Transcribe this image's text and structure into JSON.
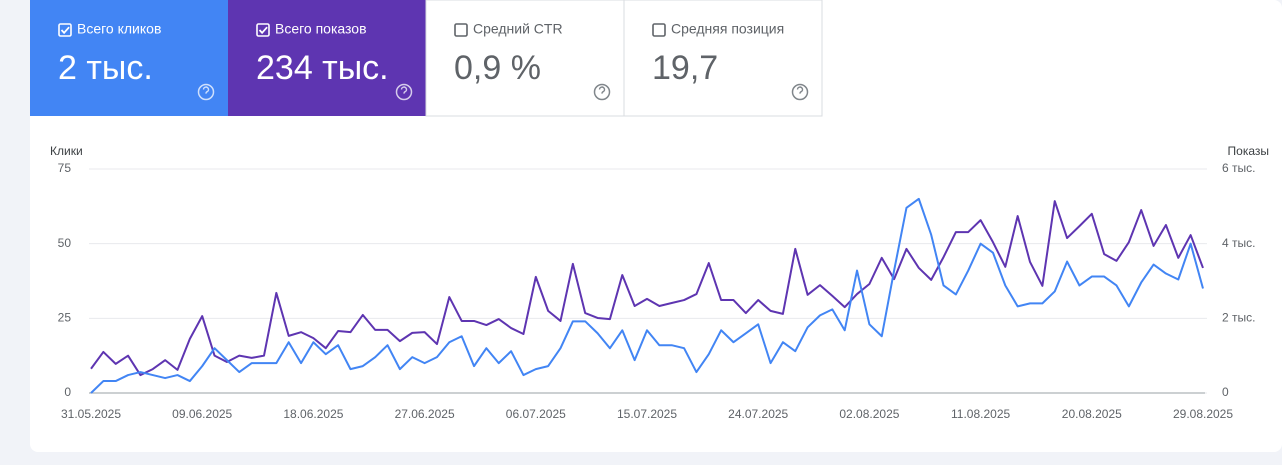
{
  "metrics": [
    {
      "label": "Всего кликов",
      "value": "2 тыс.",
      "checked": true,
      "color": "#4285f4"
    },
    {
      "label": "Всего показов",
      "value": "234 тыс.",
      "checked": true,
      "color": "#5e35b1"
    },
    {
      "label": "Средний CTR",
      "value": "0,9 %",
      "checked": false,
      "color": "#ffffff"
    },
    {
      "label": "Средняя позиция",
      "value": "19,7",
      "checked": false,
      "color": "#ffffff"
    }
  ],
  "chart_data": {
    "type": "line",
    "y_label": "Клики",
    "y2_label": "Показы",
    "categories": [
      "31.05.2025",
      null,
      null,
      null,
      null,
      null,
      null,
      null,
      null,
      "09.06.2025",
      null,
      null,
      null,
      null,
      null,
      null,
      null,
      null,
      "18.06.2025",
      null,
      null,
      null,
      null,
      null,
      null,
      null,
      null,
      "27.06.2025",
      null,
      null,
      null,
      null,
      null,
      null,
      null,
      null,
      "06.07.2025",
      null,
      null,
      null,
      null,
      null,
      null,
      null,
      null,
      "15.07.2025",
      null,
      null,
      null,
      null,
      null,
      null,
      null,
      null,
      "24.07.2025",
      null,
      null,
      null,
      null,
      null,
      null,
      null,
      null,
      "02.08.2025",
      null,
      null,
      null,
      null,
      null,
      null,
      null,
      null,
      "11.08.2025",
      null,
      null,
      null,
      null,
      null,
      null,
      null,
      null,
      "20.08.2025",
      null,
      null,
      null,
      null,
      null,
      null,
      null,
      null,
      "29.08.2025"
    ],
    "series": [
      {
        "color": "#5e35b1",
        "axis": "y2",
        "values": [
          650,
          1100,
          780,
          1000,
          480,
          640,
          880,
          620,
          1450,
          2060,
          1000,
          830,
          1000,
          940,
          1000,
          2680,
          1530,
          1630,
          1470,
          1200,
          1660,
          1630,
          2090,
          1690,
          1690,
          1390,
          1610,
          1630,
          1310,
          2570,
          1930,
          1930,
          1820,
          1980,
          1740,
          1580,
          3110,
          2200,
          1930,
          3460,
          2140,
          2010,
          1980,
          3160,
          2330,
          2520,
          2330,
          2410,
          2490,
          2650,
          3480,
          2490,
          2490,
          2140,
          2490,
          2200,
          2120,
          3860,
          2630,
          2890,
          2600,
          2300,
          2650,
          2920,
          3620,
          3050,
          3860,
          3350,
          3030,
          3640,
          4310,
          4310,
          4630,
          4040,
          3380,
          4740,
          3510,
          2870,
          5140,
          4150,
          4470,
          4800,
          3720,
          3540,
          4040,
          4900,
          3940,
          4500,
          3620,
          4230,
          3350
        ]
      },
      {
        "color": "#4285f4",
        "values": [
          0,
          4,
          4,
          6,
          7,
          6,
          5,
          6,
          4,
          9,
          15,
          11,
          7,
          10,
          10,
          10,
          17,
          10,
          17,
          13,
          16,
          8,
          9,
          12,
          16,
          8,
          12,
          10,
          12,
          17,
          19,
          9,
          15,
          10,
          14,
          6,
          8,
          9,
          15,
          24,
          24,
          20,
          15,
          21,
          11,
          21,
          16,
          16,
          15,
          7,
          13,
          21,
          17,
          20,
          23,
          10,
          17,
          14,
          22,
          26,
          28,
          21,
          41,
          23,
          19,
          41,
          62,
          65,
          53,
          36,
          33,
          41,
          50,
          47,
          36,
          29,
          30,
          30,
          34,
          44,
          36,
          39,
          39,
          36,
          29,
          37,
          43,
          40,
          38,
          50,
          35
        ]
      }
    ],
    "ylim": [
      0,
      75
    ],
    "yticks": [
      0,
      25,
      50,
      75
    ],
    "y2lim": [
      0,
      6000
    ],
    "y2ticks": [
      0,
      {
        "value": 2000,
        "label": "2 тыс."
      },
      {
        "value": 4000,
        "label": "4 тыс."
      },
      {
        "value": 6000,
        "label": "6 тыс."
      }
    ],
    "grid": true
  }
}
